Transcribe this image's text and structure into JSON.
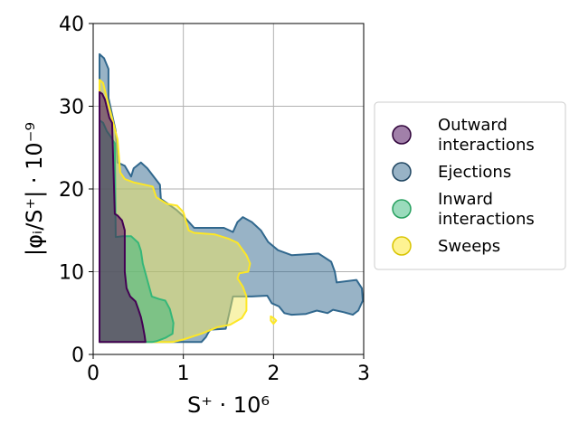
{
  "chart_data": {
    "type": "area",
    "xlabel": "S⁺ · 10⁶",
    "ylabel": "|φᵢ/S⁺| · 10⁻⁹",
    "xlim": [
      0,
      3
    ],
    "ylim": [
      0,
      40
    ],
    "xticks": [
      "0",
      "1",
      "2",
      "3"
    ],
    "yticks": [
      "0",
      "10",
      "20",
      "30",
      "40"
    ],
    "grid": true,
    "legend_position": "right",
    "series": [
      {
        "name": "Ejections",
        "fill": "#31688e",
        "stroke": "#31688e",
        "regions": [
          [
            [
              0.07,
              1.5
            ],
            [
              0.07,
              36.3
            ],
            [
              0.12,
              35.8
            ],
            [
              0.17,
              34.5
            ],
            [
              0.17,
              31.0
            ],
            [
              0.19,
              30.0
            ],
            [
              0.25,
              27.0
            ],
            [
              0.27,
              23.2
            ],
            [
              0.35,
              22.8
            ],
            [
              0.42,
              21.5
            ],
            [
              0.45,
              22.5
            ],
            [
              0.53,
              23.2
            ],
            [
              0.6,
              22.5
            ],
            [
              0.74,
              20.5
            ],
            [
              0.75,
              18.8
            ],
            [
              0.92,
              17.5
            ],
            [
              1.02,
              16.5
            ],
            [
              1.12,
              15.3
            ],
            [
              1.45,
              15.3
            ],
            [
              1.55,
              14.8
            ],
            [
              1.6,
              16.0
            ],
            [
              1.66,
              16.6
            ],
            [
              1.76,
              16.0
            ],
            [
              1.86,
              15.0
            ],
            [
              1.94,
              13.6
            ],
            [
              2.05,
              12.6
            ],
            [
              2.2,
              12.0
            ],
            [
              2.5,
              12.2
            ],
            [
              2.64,
              11.2
            ],
            [
              2.68,
              10.0
            ],
            [
              2.7,
              8.7
            ],
            [
              2.92,
              9.0
            ],
            [
              2.98,
              8.0
            ],
            [
              2.99,
              6.5
            ],
            [
              2.94,
              5.3
            ],
            [
              2.88,
              4.8
            ],
            [
              2.78,
              5.1
            ],
            [
              2.66,
              5.4
            ],
            [
              2.6,
              5.0
            ],
            [
              2.48,
              5.3
            ],
            [
              2.36,
              4.9
            ],
            [
              2.2,
              4.8
            ],
            [
              2.12,
              5.0
            ],
            [
              2.06,
              5.8
            ],
            [
              1.98,
              6.2
            ],
            [
              1.93,
              7.1
            ],
            [
              1.76,
              7.0
            ],
            [
              1.55,
              7.0
            ],
            [
              1.52,
              5.5
            ],
            [
              1.47,
              3.1
            ],
            [
              1.3,
              3.0
            ],
            [
              1.28,
              2.7
            ],
            [
              1.25,
              2.1
            ],
            [
              1.2,
              1.5
            ]
          ]
        ]
      },
      {
        "name": "Sweeps",
        "fill": "#f1e85e",
        "stroke": "#fde725",
        "regions": [
          [
            [
              0.07,
              1.5
            ],
            [
              0.07,
              33.2
            ],
            [
              0.11,
              32.8
            ],
            [
              0.15,
              31.0
            ],
            [
              0.2,
              29.0
            ],
            [
              0.27,
              26.0
            ],
            [
              0.3,
              22.0
            ],
            [
              0.35,
              21.2
            ],
            [
              0.45,
              20.8
            ],
            [
              0.66,
              20.3
            ],
            [
              0.7,
              19.0
            ],
            [
              0.82,
              18.2
            ],
            [
              0.93,
              18.0
            ],
            [
              1.0,
              17.2
            ],
            [
              1.06,
              15.0
            ],
            [
              1.12,
              14.7
            ],
            [
              1.35,
              14.5
            ],
            [
              1.5,
              14.0
            ],
            [
              1.6,
              13.5
            ],
            [
              1.7,
              12.0
            ],
            [
              1.74,
              11.0
            ],
            [
              1.72,
              10.0
            ],
            [
              1.62,
              9.8
            ],
            [
              1.6,
              9.2
            ],
            [
              1.66,
              8.2
            ],
            [
              1.7,
              7.0
            ],
            [
              1.7,
              5.3
            ],
            [
              1.65,
              4.4
            ],
            [
              1.52,
              3.6
            ],
            [
              1.38,
              3.3
            ],
            [
              1.2,
              2.5
            ],
            [
              1.0,
              1.8
            ],
            [
              0.88,
              1.5
            ]
          ],
          [
            [
              1.97,
              4.6
            ],
            [
              2.0,
              4.4
            ],
            [
              2.03,
              4.1
            ],
            [
              2.0,
              3.7
            ],
            [
              1.97,
              4.1
            ]
          ]
        ]
      },
      {
        "name": "Inward interactions",
        "fill": "#35b779",
        "stroke": "#35b779",
        "regions": [
          [
            [
              0.07,
              1.5
            ],
            [
              0.07,
              28.3
            ],
            [
              0.11,
              28.0
            ],
            [
              0.15,
              27.0
            ],
            [
              0.19,
              26.4
            ],
            [
              0.24,
              25.5
            ],
            [
              0.25,
              14.2
            ],
            [
              0.33,
              14.3
            ],
            [
              0.42,
              14.3
            ],
            [
              0.5,
              13.5
            ],
            [
              0.53,
              12.5
            ],
            [
              0.55,
              11.0
            ],
            [
              0.6,
              9.0
            ],
            [
              0.65,
              7.0
            ],
            [
              0.73,
              6.7
            ],
            [
              0.8,
              6.5
            ],
            [
              0.85,
              5.5
            ],
            [
              0.89,
              3.8
            ],
            [
              0.88,
              2.5
            ],
            [
              0.8,
              2.0
            ],
            [
              0.7,
              1.6
            ],
            [
              0.65,
              1.5
            ]
          ]
        ]
      },
      {
        "name": "Outward interactions",
        "fill": "#440154",
        "stroke": "#440154",
        "regions": [
          [
            [
              0.07,
              1.5
            ],
            [
              0.07,
              31.7
            ],
            [
              0.1,
              31.5
            ],
            [
              0.13,
              30.8
            ],
            [
              0.16,
              29.5
            ],
            [
              0.18,
              28.6
            ],
            [
              0.21,
              28.0
            ],
            [
              0.24,
              17.0
            ],
            [
              0.27,
              16.8
            ],
            [
              0.32,
              16.2
            ],
            [
              0.35,
              15.0
            ],
            [
              0.35,
              10.0
            ],
            [
              0.37,
              8.0
            ],
            [
              0.41,
              7.0
            ],
            [
              0.47,
              6.4
            ],
            [
              0.5,
              5.5
            ],
            [
              0.53,
              4.5
            ],
            [
              0.55,
              3.5
            ],
            [
              0.57,
              2.3
            ],
            [
              0.58,
              1.5
            ]
          ]
        ]
      }
    ],
    "legend": [
      {
        "label_lines": [
          "Outward",
          "interactions"
        ],
        "fill": "#440154",
        "stroke": "#2d0038"
      },
      {
        "label_lines": [
          "Ejections"
        ],
        "fill": "#31688e",
        "stroke": "#1f4561"
      },
      {
        "label_lines": [
          "Inward",
          "interactions"
        ],
        "fill": "#35b779",
        "stroke": "#27a05f"
      },
      {
        "label_lines": [
          "Sweeps"
        ],
        "fill": "#fde725",
        "stroke": "#d8c400"
      }
    ]
  }
}
